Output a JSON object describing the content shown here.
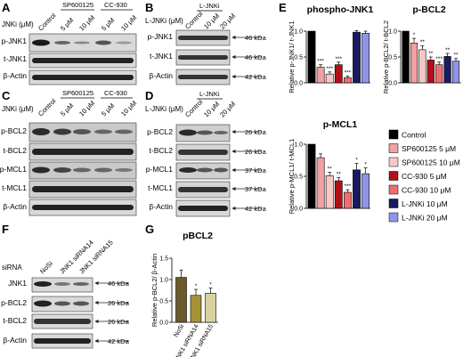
{
  "panels": {
    "A": {
      "letter": "A",
      "conc_label": "JNKi (μM)",
      "group_labels": [
        "SP600125",
        "CC-930"
      ],
      "lanes": [
        "Control",
        "5 μM",
        "10 μM",
        "5 μM",
        "10 μM"
      ],
      "rows": [
        "p-JNK1",
        "t-JNK1",
        "β-Actin"
      ]
    },
    "B": {
      "letter": "B",
      "conc_label": "L-JNKi (μM)",
      "group_labels": [
        "L-JNKi"
      ],
      "lanes": [
        "Control",
        "10 μM",
        "20 μM"
      ],
      "rows": [
        "p-JNK1",
        "t-JNK1",
        "β-Actin"
      ],
      "kda": [
        "46 kDa",
        "46 kDa",
        "42 kDa"
      ]
    },
    "C": {
      "letter": "C",
      "conc_label": "JNKi (μM)",
      "group_labels": [
        "SP600125",
        "CC-930"
      ],
      "lanes": [
        "Control",
        "5 μM",
        "10 μM",
        "5 μM",
        "10 μM"
      ],
      "rows": [
        "p-BCL2",
        "t-BCL2",
        "p-MCL1",
        "t-MCL1",
        "β-Actin"
      ]
    },
    "D": {
      "letter": "D",
      "conc_label": "L-JNKi (μM)",
      "group_labels": [
        "L-JNKi"
      ],
      "lanes": [
        "Control",
        "10 μM",
        "20 μM"
      ],
      "rows": [
        "p-BCL2",
        "t-BCL2",
        "p-MCL1",
        "t-MCL1",
        "β-Actin"
      ],
      "kda": [
        "26 kDa",
        "26 kDa",
        "37 kDa",
        "37 kDa",
        "42 kDa"
      ]
    },
    "E": {
      "letter": "E"
    },
    "F": {
      "letter": "F",
      "conc_label": "siRNA",
      "lanes": [
        "NoSi",
        "JNK1 siRNA14",
        "JNK1 siRNA15"
      ],
      "rows": [
        "JNK1",
        "p-BCL2",
        "t-BCL2",
        "β-Actin"
      ],
      "kda": [
        "46 kDa",
        "26 kDa",
        "26 kDa",
        "42 kDa"
      ]
    },
    "G": {
      "letter": "G"
    }
  },
  "legend": {
    "entries": [
      {
        "label": "Control",
        "color": "#000000"
      },
      {
        "label": "SP600125 5 μM",
        "color": "#f2a0a0"
      },
      {
        "label": "SP600125 10 μM",
        "color": "#f5c8c8"
      },
      {
        "label": "CC-930 5 μM",
        "color": "#b40f19"
      },
      {
        "label": "CC-930 10 μM",
        "color": "#ee6e6e"
      },
      {
        "label": "L-JNKi 10 μM",
        "color": "#1a1a60"
      },
      {
        "label": "L-JNKi 20 μM",
        "color": "#8f94e6"
      }
    ]
  },
  "chart_data": [
    {
      "id": "phospho-JNK1",
      "type": "bar",
      "title": "phospho-JNK1",
      "ylabel": "Relative p-JNK1/ t-JNK1",
      "ylim": [
        0,
        1.0
      ],
      "yticks": [
        "0.0",
        "0.5",
        "1.0"
      ],
      "categories": [
        "Control",
        "SP600125 5 μM",
        "SP600125 10 μM",
        "CC-930 5 μM",
        "CC-930 10 μM",
        "L-JNKi 10 μM",
        "L-JNKi 20 μM"
      ],
      "values": [
        1.0,
        0.3,
        0.17,
        0.35,
        0.1,
        0.98,
        0.96
      ],
      "errors": [
        0,
        0.05,
        0.04,
        0.05,
        0.03,
        0.03,
        0.04
      ],
      "significance": [
        "",
        "***",
        "***",
        "***",
        "***",
        "",
        ""
      ]
    },
    {
      "id": "p-BCL2",
      "type": "bar",
      "title": "p-BCL2",
      "ylabel": "Relative p-BCL2/ t-BCL2",
      "ylim": [
        0,
        1.0
      ],
      "yticks": [
        "0.0",
        "0.5",
        "1.0"
      ],
      "categories": [
        "Control",
        "SP600125 5 μM",
        "SP600125 10 μM",
        "CC-930 5 μM",
        "CC-930 10 μM",
        "L-JNKi 10 μM",
        "L-JNKi 20 μM"
      ],
      "values": [
        1.0,
        0.77,
        0.64,
        0.44,
        0.35,
        0.51,
        0.42
      ],
      "errors": [
        0,
        0.09,
        0.08,
        0.06,
        0.05,
        0.06,
        0.05
      ],
      "significance": [
        "",
        "*",
        "**",
        "**",
        "***",
        "**",
        "**"
      ]
    },
    {
      "id": "p-MCL1",
      "type": "bar",
      "title": "p-MCL1",
      "ylabel": "Relative p-MCL1/ t-MCL1",
      "ylim": [
        0,
        1.0
      ],
      "yticks": [
        "0.0",
        "0.5",
        "1.0"
      ],
      "categories": [
        "Control",
        "SP600125 5 μM",
        "SP600125 10 μM",
        "CC-930 5 μM",
        "CC-930 10 μM",
        "L-JNKi 10 μM",
        "L-JNKi 20 μM"
      ],
      "values": [
        1.0,
        0.79,
        0.51,
        0.43,
        0.25,
        0.6,
        0.54
      ],
      "errors": [
        0,
        0.06,
        0.05,
        0.05,
        0.04,
        0.1,
        0.09
      ],
      "significance": [
        "",
        "",
        "**",
        "**",
        "***",
        "*",
        "*"
      ]
    },
    {
      "id": "pBCL2",
      "type": "bar",
      "title": "pBCL2",
      "ylabel": "Relative p-BCL2/ β-Actin",
      "ylim": [
        0,
        1.5
      ],
      "yticks": [
        "0.0",
        "0.5",
        "1.0",
        "1.5"
      ],
      "categories": [
        "NoSi",
        "JNK1 siRNA14",
        "JNK1 siRNA15"
      ],
      "values": [
        1.05,
        0.63,
        0.68
      ],
      "errors": [
        0.17,
        0.14,
        0.12
      ],
      "colors": [
        "#6a5a2c",
        "#a89238",
        "#d7d2a0"
      ],
      "significance": [
        "",
        "*",
        "*"
      ]
    }
  ]
}
